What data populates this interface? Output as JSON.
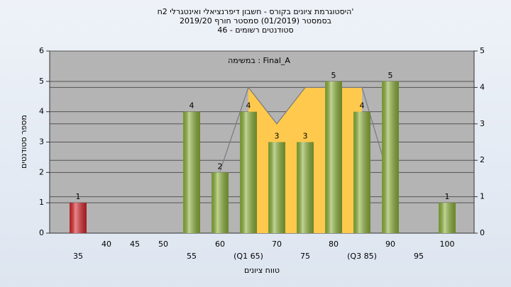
{
  "chart_data": {
    "type": "bar",
    "title": "היסטוגרמת ציונים בקורס - חשבון דיפרנציאלי ואינטגרלי 2ח'",
    "subtitle": "בסמסטר (01/2019) סמסטר חורף 2019/20",
    "subtitle2": "סטודנטים רשומים - 46",
    "annotation": "במשימה : Final_A",
    "x_label": "טווח ציונים",
    "y_label": "מספר סטודנטים",
    "categories": [
      "35",
      "40",
      "45",
      "50",
      "55",
      "60",
      "(Q1 65)",
      "70",
      "75",
      "80",
      "(Q3 85)",
      "90",
      "95",
      "100"
    ],
    "values": [
      1,
      0,
      0,
      0,
      4,
      2,
      4,
      3,
      3,
      5,
      4,
      5,
      0,
      1
    ],
    "colors": [
      "#d9262c",
      "#8db33a",
      "#8db33a",
      "#8db33a",
      "#8db33a",
      "#8db33a",
      "#8db33a",
      "#8db33a",
      "#8db33a",
      "#8db33a",
      "#8db33a",
      "#8db33a",
      "#8db33a",
      "#8db33a"
    ],
    "ylim": [
      0,
      6
    ],
    "yticks": [
      0,
      1,
      2,
      3,
      4,
      5,
      6
    ],
    "y2lim": [
      0,
      5
    ],
    "y2ticks": [
      0,
      1,
      2,
      3,
      4,
      5
    ],
    "grid": true,
    "overlays": [
      {
        "type": "area",
        "axis": "y2",
        "color": "#ffc94d",
        "x": [
          65,
          70,
          75,
          85
        ],
        "values": [
          4,
          3,
          4,
          4
        ]
      },
      {
        "type": "line",
        "axis": "y2",
        "color": "#7a7a7a",
        "x": [
          60,
          65,
          70,
          75,
          85,
          90
        ],
        "values": [
          1.7,
          4,
          3,
          4,
          4,
          1.4
        ]
      }
    ]
  }
}
